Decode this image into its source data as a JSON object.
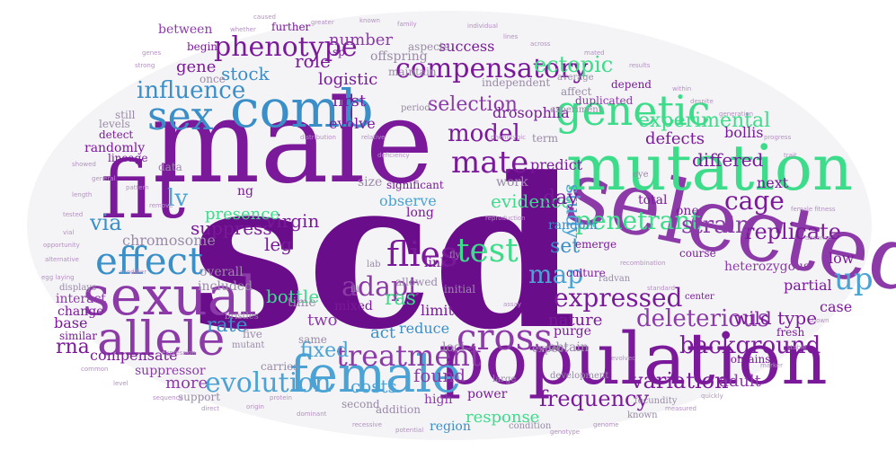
{
  "words": {
    "scd": "scd",
    "male": "male",
    "selected": "selected",
    "mutation": "mutation",
    "population": "population",
    "fit": "fit",
    "sexual": "sexual",
    "comb": "comb",
    "sex": "sex",
    "allele": "allele",
    "female": "female",
    "effect": "effect",
    "cross": "cross",
    "genetic": "genetic",
    "compensatory": "compensatory",
    "phenotype": "phenotype",
    "influence": "influence",
    "evolution": "evolution",
    "treatment": "treatment",
    "adapt": "adapt",
    "flies": "flies",
    "test": "test",
    "up": "up",
    "mate": "mate",
    "model": "model",
    "penetrant": "penetrant",
    "cage": "cage",
    "replicate": "replicate",
    "expressed": "expressed",
    "deleterious": "deleterious",
    "background": "background",
    "variation": "variation",
    "frequency": "frequency",
    "rate": "rate",
    "fixed": "fixed",
    "bottle": "bottle",
    "via": "via",
    "lv": "lv",
    "strain": "strain",
    "study": "study",
    "map": "map",
    "set": "set",
    "ras": "ras",
    "rna": "rna",
    "costs": "costs",
    "found": "found",
    "response": "response",
    "leg": "leg",
    "experimental": "experimental",
    "differed": "differed",
    "ectopic": "ectopic",
    "selection": "selection",
    "virgin": "virgin",
    "suppress": "suppress",
    "presence": "presence",
    "chromosome": "chromosome",
    "evidence": "evidence",
    "defects": "defects",
    "gene": "gene",
    "stock": "stock",
    "role": "role",
    "number": "number",
    "logistic": "logistic",
    "success": "success",
    "offspring": "offspring",
    "first": "first",
    "evolve": "evolve",
    "drosophila": "drosophila",
    "day": "day",
    "nature": "nature",
    "wild_type": "wild type",
    "adult": "adult",
    "low": "low",
    "case": "case",
    "partial": "partial",
    "more": "more",
    "act": "act",
    "two": "two",
    "time": "time",
    "limit": "limit",
    "reduce": "reduce",
    "power": "power",
    "region": "region",
    "base": "base",
    "compensate": "compensate",
    "suppressor": "suppressor",
    "interact": "interact",
    "change": "change",
    "overall": "overall",
    "included": "included",
    "observe": "observe",
    "link": "link",
    "random": "random",
    "predict": "predict",
    "bollis": "bollis",
    "next": "next",
    "one": "one",
    "total": "total",
    "heterozygous": "heterozygous",
    "long": "long",
    "loci": "loci",
    "high": "high",
    "addition": "addition",
    "work": "work",
    "term": "term",
    "size": "size",
    "ng": "ng",
    "data": "data",
    "randomly": "randomly",
    "lineage": "lineage",
    "between": "between",
    "begin": "begin",
    "further": "further",
    "aspects": "aspects",
    "maintain": "maintain",
    "independent": "independent",
    "depend": "depend",
    "affect": "affect",
    "duplicated": "duplicated",
    "course": "course",
    "culture": "culture",
    "purge": "purge",
    "obtain": "obtain",
    "contains": "contains",
    "fresh": "fresh",
    "mixed": "mixed",
    "carries": "carries",
    "same": "same",
    "similar": "similar",
    "support": "support",
    "second": "second",
    "expect": "expect",
    "emerge": "emerge",
    "allowed": "allowed",
    "initial": "initial",
    "significant": "significant",
    "detect": "detect",
    "still": "still",
    "once": "once",
    "levels": "levels",
    "experiment": "experiment",
    "period": "period",
    "average": "average",
    "displays": "displays",
    "mutant": "mutant",
    "five": "five",
    "bristles": "bristles",
    "center": "center",
    "radvan": "radvan",
    "iii": "iii",
    "lab": "lab",
    "development": "development",
    "large": "large",
    "condition": "condition",
    "fecundity": "fecundity",
    "known": "known",
    "fly": "fly",
    "sp": "sp",
    "eye": "eye"
  },
  "small_words": [
    "pattern",
    "remove",
    "length",
    "modifier",
    "egg laying",
    "general",
    "tested",
    "vial",
    "whether",
    "caused",
    "greater",
    "known",
    "family",
    "individual",
    "lines",
    "across",
    "mated",
    "results",
    "within",
    "despite",
    "generation",
    "progress",
    "trait",
    "female fitness",
    "absence",
    "shown",
    "stable",
    "marker",
    "quickly",
    "measured",
    "genome",
    "genotype",
    "potential",
    "recessive",
    "dominant",
    "origin",
    "direct",
    "sequence",
    "level",
    "common",
    "alternative",
    "showed",
    "strong",
    "genes",
    "distribution",
    "relative",
    "deficiency",
    "reproduction",
    "opportunity",
    "recombination",
    "standard",
    "evolved",
    "assay",
    "protein",
    "expression",
    "phenotypic"
  ],
  "colors": {
    "purple": "#7a1a9a",
    "green": "#3ddc8a",
    "blue": "#3a8fc8",
    "cloud_background": "#f4f4f6"
  }
}
